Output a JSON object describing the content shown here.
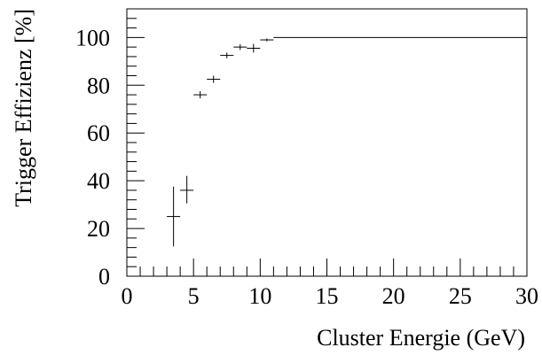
{
  "chart_data": {
    "type": "scatter",
    "title": "",
    "xlabel": "Cluster Energie (GeV)",
    "ylabel": "Trigger Effizienz [%]",
    "xlim": [
      0,
      30
    ],
    "ylim": [
      0,
      112
    ],
    "x_ticks": [
      0,
      5,
      10,
      15,
      20,
      25,
      30
    ],
    "y_ticks": [
      0,
      20,
      40,
      60,
      80,
      100
    ],
    "grid": false,
    "legend": "none",
    "series": [
      {
        "points": [
          {
            "x": 3.5,
            "y": 25,
            "xerr": 0.5,
            "yerr_low": 12.5,
            "yerr_high": 12.5
          },
          {
            "x": 4.5,
            "y": 36,
            "xerr": 0.5,
            "yerr_low": 5.5,
            "yerr_high": 6
          },
          {
            "x": 5.5,
            "y": 76,
            "xerr": 0.5,
            "yerr_low": 1.5,
            "yerr_high": 1.5
          },
          {
            "x": 6.5,
            "y": 82.5,
            "xerr": 0.5,
            "yerr_low": 1.5,
            "yerr_high": 1.5
          },
          {
            "x": 7.5,
            "y": 92.5,
            "xerr": 0.5,
            "yerr_low": 1.2,
            "yerr_high": 1.2
          },
          {
            "x": 8.5,
            "y": 96,
            "xerr": 0.5,
            "yerr_low": 1.2,
            "yerr_high": 1.2
          },
          {
            "x": 9.5,
            "y": 95.5,
            "xerr": 0.5,
            "yerr_low": 1.8,
            "yerr_high": 1.8
          },
          {
            "x": 10.5,
            "y": 99,
            "xerr": 0.5,
            "yerr_low": 0.6,
            "yerr_high": 0.6
          }
        ]
      }
    ],
    "plateau": {
      "x_start": 11,
      "x_end": 30,
      "y": 100
    }
  }
}
